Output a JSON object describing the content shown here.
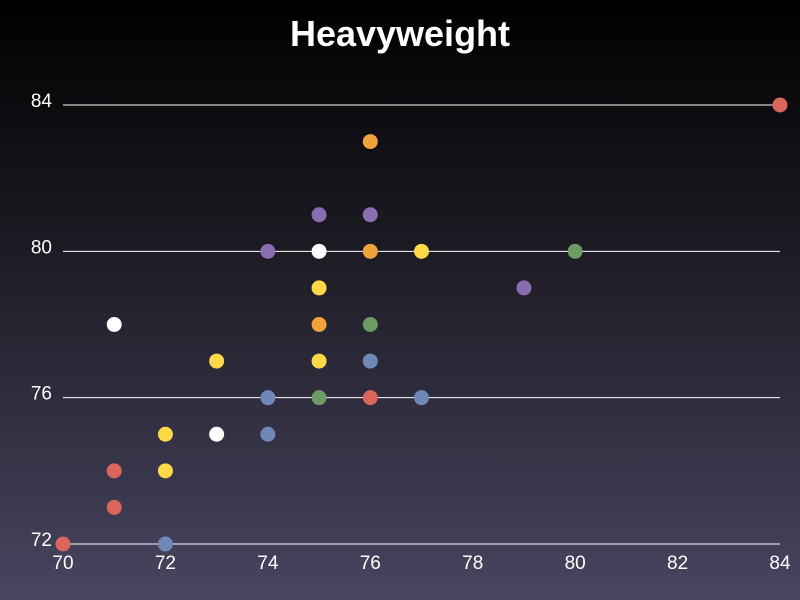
{
  "chart_data": {
    "type": "scatter",
    "title": "Heavyweight",
    "xlabel": "",
    "ylabel": "",
    "xlim": [
      70,
      84
    ],
    "ylim": [
      72,
      84
    ],
    "xticks": [
      "70",
      "72",
      "74",
      "76",
      "78",
      "80",
      "82",
      "84"
    ],
    "yticks": [
      "72",
      "76",
      "80",
      "84"
    ],
    "grid": "horizontal",
    "series": [
      {
        "color": "#d9655b",
        "points": [
          [
            70,
            72
          ],
          [
            71,
            73
          ],
          [
            71,
            74
          ],
          [
            76,
            76
          ],
          [
            84,
            84
          ]
        ]
      },
      {
        "color": "#f0a23b",
        "points": [
          [
            75,
            78
          ],
          [
            76,
            80
          ],
          [
            76,
            83
          ]
        ]
      },
      {
        "color": "#ffd84a",
        "points": [
          [
            72,
            74
          ],
          [
            72,
            75
          ],
          [
            73,
            77
          ],
          [
            75,
            77
          ],
          [
            75,
            79
          ],
          [
            77,
            80
          ]
        ]
      },
      {
        "color": "#6c9b64",
        "points": [
          [
            75,
            76
          ],
          [
            76,
            78
          ],
          [
            80,
            80
          ]
        ]
      },
      {
        "color": "#6f88b8",
        "points": [
          [
            72,
            72
          ],
          [
            74,
            75
          ],
          [
            74,
            76
          ],
          [
            76,
            77
          ],
          [
            77,
            76
          ]
        ]
      },
      {
        "color": "#8a6db0",
        "points": [
          [
            74,
            80
          ],
          [
            75,
            81
          ],
          [
            76,
            81
          ],
          [
            79,
            79
          ]
        ]
      },
      {
        "color": "#ffffff",
        "points": [
          [
            71,
            78
          ],
          [
            73,
            75
          ],
          [
            75,
            80
          ]
        ]
      }
    ]
  }
}
